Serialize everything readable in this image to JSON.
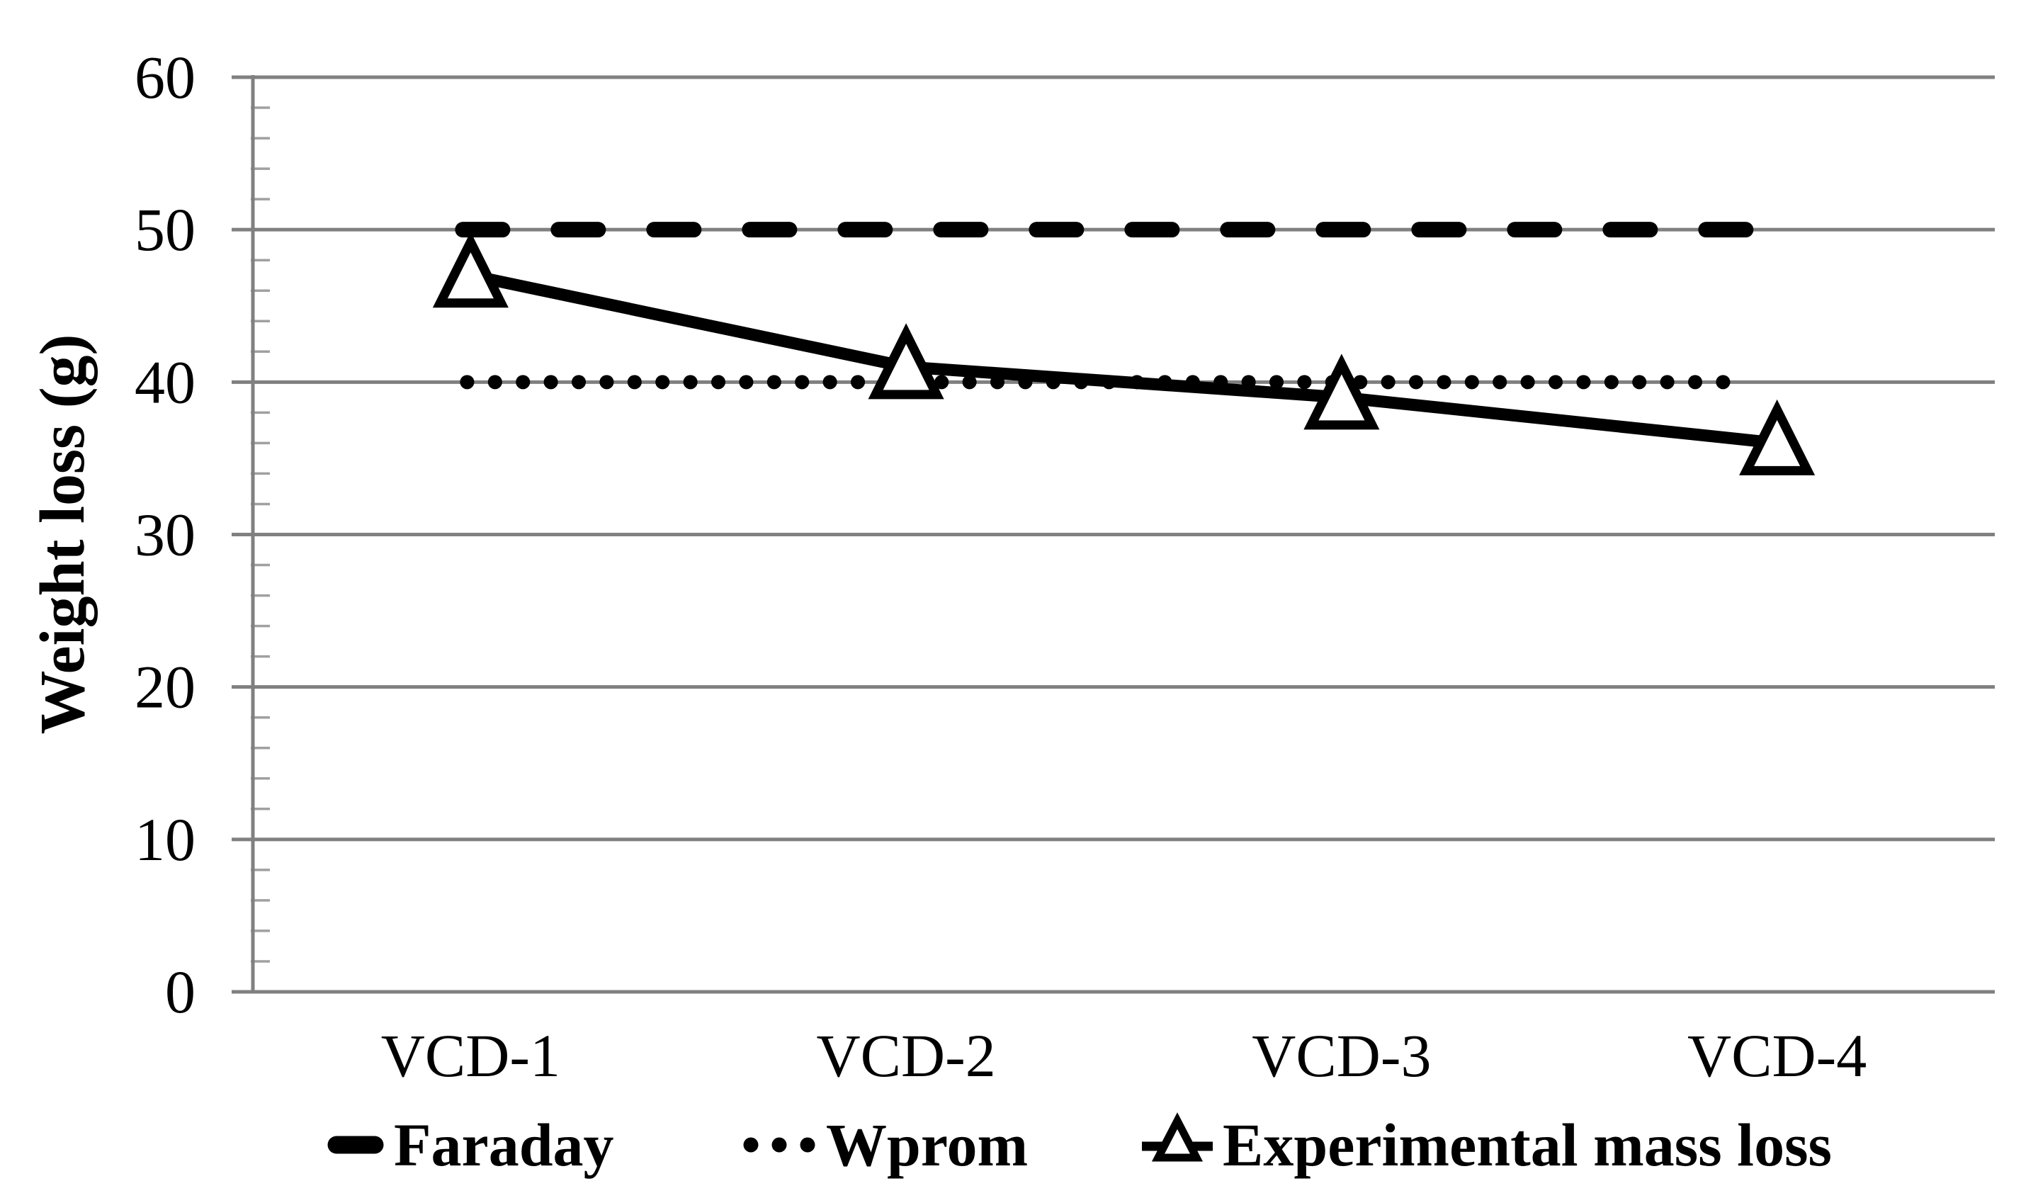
{
  "chart_data": {
    "type": "line",
    "categories": [
      "VCD-1",
      "VCD-2",
      "VCD-3",
      "VCD-4"
    ],
    "series": [
      {
        "name": "Faraday",
        "style": "thick-dash",
        "marker": "none",
        "color": "#000000",
        "values": [
          50,
          50,
          50,
          50
        ]
      },
      {
        "name": "Wprom",
        "style": "dotted",
        "marker": "none",
        "color": "#000000",
        "values": [
          40,
          40,
          40,
          40
        ]
      },
      {
        "name": "Experimental mass loss",
        "style": "solid",
        "marker": "open-triangle",
        "color": "#000000",
        "values": [
          47,
          41,
          39,
          36
        ]
      }
    ],
    "xlabel": "",
    "ylabel": "Weight loss (g)",
    "ylim": [
      0,
      60
    ],
    "yticks": [
      0,
      10,
      20,
      30,
      40,
      50,
      60
    ],
    "minor_tick_step": 2,
    "grid": "horizontal-major",
    "legend_position": "bottom",
    "colors": {
      "series": "#000000",
      "gridline": "#808080",
      "axis": "#808080",
      "minor_tick": "#a0a0a0",
      "marker_fill": "#ffffff",
      "background": "#ffffff",
      "text": "#000000"
    }
  },
  "legend": {
    "items": [
      {
        "label": "Faraday",
        "marker": "thick-dash"
      },
      {
        "label": "Wprom",
        "marker": "three-dots"
      },
      {
        "label": "Experimental mass loss",
        "marker": "triangle-on-line"
      }
    ]
  }
}
